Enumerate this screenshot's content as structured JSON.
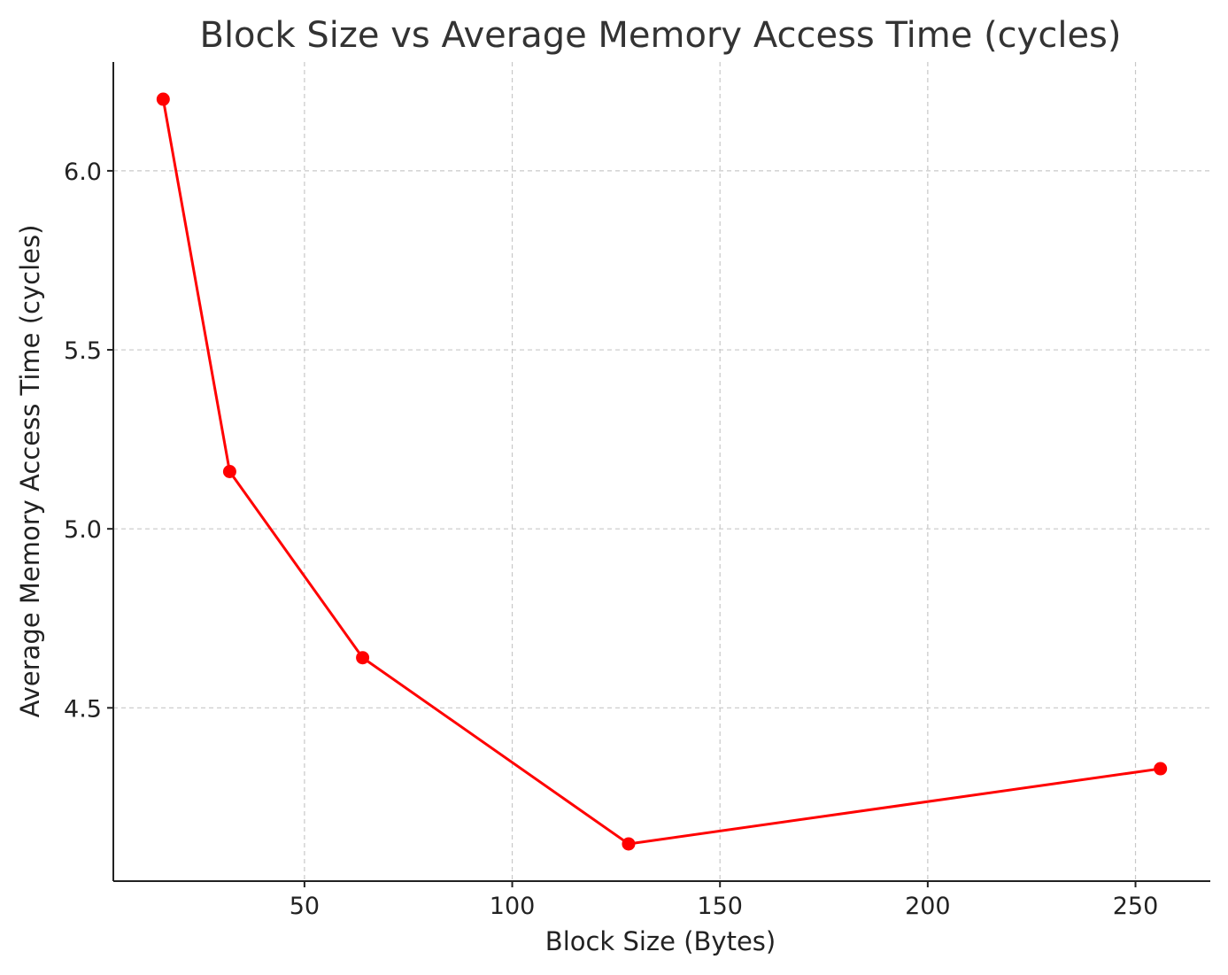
{
  "chart_data": {
    "type": "line",
    "title": "Block Size vs Average Memory Access Time (cycles)",
    "xlabel": "Block Size (Bytes)",
    "ylabel": "Average Memory Access Time (cycles)",
    "x": [
      16,
      32,
      64,
      128,
      256
    ],
    "series": [
      {
        "values": [
          6.2,
          5.16,
          4.64,
          4.12,
          4.33
        ],
        "color": "#ff0000",
        "marker": "circle"
      }
    ],
    "x_ticks": [
      50,
      100,
      150,
      200,
      250
    ],
    "x_tick_labels": [
      "50",
      "100",
      "150",
      "200",
      "250"
    ],
    "y_ticks": [
      4.5,
      5.0,
      5.5,
      6.0
    ],
    "y_tick_labels": [
      "4.5",
      "5.0",
      "5.5",
      "6.0"
    ],
    "xlim": [
      4.0,
      268.0
    ],
    "ylim": [
      4.016,
      6.304
    ],
    "grid": true,
    "grid_style": "dashed",
    "legend": "none"
  }
}
